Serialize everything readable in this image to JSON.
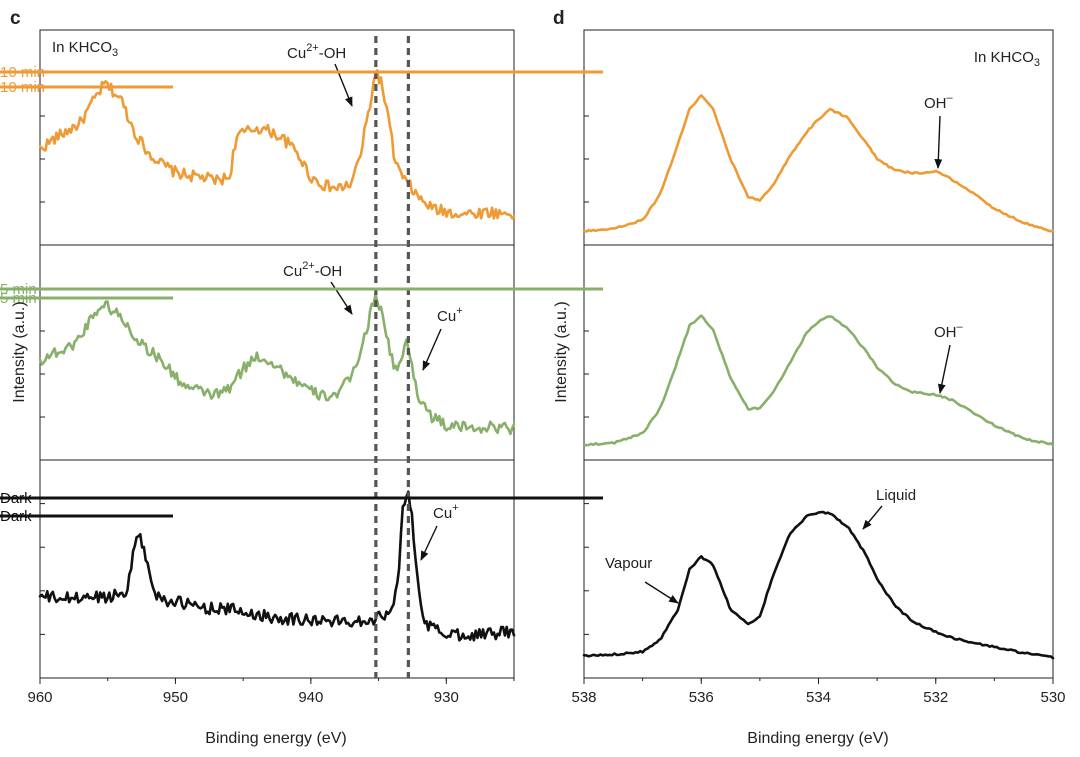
{
  "colors": {
    "orange": "#EE9A35",
    "green": "#88B06A",
    "black": "#111111"
  },
  "chart_data": [
    {
      "panel": "c",
      "type": "line",
      "context": "In KHCO3",
      "context_parts": {
        "main": "In KHCO",
        "sub": "3"
      },
      "xlabel": "Binding energy (eV)",
      "ylabel": "Intensity (a.u.)",
      "xlim": [
        960,
        925
      ],
      "x_ticks": [
        960,
        950,
        940,
        930
      ],
      "reference_lines_x": [
        935.2,
        932.8
      ],
      "series": [
        {
          "name": "10 min",
          "color": "orange",
          "x": [
            960,
            959,
            958,
            957,
            956,
            955.2,
            954,
            953,
            952,
            951,
            950,
            949,
            948,
            947,
            946,
            945.5,
            944,
            943,
            942,
            941,
            940,
            939,
            938,
            937,
            936.3,
            935.5,
            935.2,
            934.8,
            934.3,
            933.8,
            933.3,
            933,
            932.7,
            932,
            931,
            930,
            929,
            928,
            927,
            926,
            925
          ],
          "y": [
            0.52,
            0.58,
            0.63,
            0.68,
            0.82,
            0.92,
            0.82,
            0.62,
            0.5,
            0.43,
            0.38,
            0.36,
            0.35,
            0.33,
            0.35,
            0.6,
            0.65,
            0.63,
            0.58,
            0.5,
            0.35,
            0.3,
            0.28,
            0.31,
            0.5,
            0.85,
            1.0,
            0.92,
            0.72,
            0.45,
            0.36,
            0.32,
            0.3,
            0.22,
            0.16,
            0.14,
            0.13,
            0.13,
            0.14,
            0.13,
            0.13
          ]
        },
        {
          "name": "5 min",
          "color": "green",
          "x": [
            960,
            959,
            958,
            957,
            956,
            955.2,
            954,
            953,
            952,
            951,
            950,
            949,
            948,
            947,
            946,
            945,
            944,
            943,
            942,
            941,
            940,
            939,
            938,
            937,
            936,
            935.2,
            934.5,
            933.9,
            933.5,
            932.9,
            932.5,
            932,
            931,
            930,
            929,
            928,
            927,
            926,
            925
          ],
          "y": [
            0.55,
            0.6,
            0.62,
            0.7,
            0.85,
            0.9,
            0.82,
            0.7,
            0.62,
            0.55,
            0.45,
            0.38,
            0.36,
            0.34,
            0.38,
            0.5,
            0.58,
            0.55,
            0.48,
            0.42,
            0.36,
            0.33,
            0.35,
            0.45,
            0.7,
            0.98,
            0.75,
            0.52,
            0.5,
            0.68,
            0.5,
            0.32,
            0.2,
            0.15,
            0.14,
            0.14,
            0.14,
            0.14,
            0.13
          ]
        },
        {
          "name": "Dark",
          "color": "black",
          "x": [
            960,
            958,
            956,
            955,
            954,
            953.5,
            953,
            952.8,
            952.5,
            952,
            951.5,
            951,
            950,
            948,
            946,
            944,
            942,
            940,
            938,
            936,
            935,
            934.2,
            933.6,
            933.2,
            932.9,
            932.6,
            932.2,
            931.8,
            931.3,
            930.5,
            929,
            928,
            927,
            926,
            925
          ],
          "y": [
            0.4,
            0.39,
            0.4,
            0.4,
            0.42,
            0.45,
            0.7,
            0.78,
            0.72,
            0.55,
            0.42,
            0.39,
            0.37,
            0.34,
            0.33,
            0.3,
            0.28,
            0.27,
            0.26,
            0.27,
            0.28,
            0.33,
            0.45,
            0.9,
            1.0,
            0.9,
            0.55,
            0.3,
            0.24,
            0.2,
            0.19,
            0.19,
            0.19,
            0.2,
            0.2
          ]
        }
      ],
      "annotations": [
        {
          "series": "10 min",
          "text": "Cu2+-OH",
          "parts": {
            "base": "Cu",
            "sup": "2+",
            "tail": "-OH"
          },
          "x": 935.5
        },
        {
          "series": "5 min",
          "text": "Cu2+-OH",
          "parts": {
            "base": "Cu",
            "sup": "2+",
            "tail": "-OH"
          },
          "x": 935.4
        },
        {
          "series": "5 min",
          "text": "Cu+",
          "parts": {
            "base": "Cu",
            "sup": "+",
            "tail": ""
          },
          "x": 932.7
        },
        {
          "series": "Dark",
          "text": "Cu+",
          "parts": {
            "base": "Cu",
            "sup": "+",
            "tail": ""
          },
          "x": 932.5
        }
      ]
    },
    {
      "panel": "d",
      "type": "line",
      "context": "In KHCO3",
      "context_parts": {
        "main": "In KHCO",
        "sub": "3"
      },
      "xlabel": "Binding energy (eV)",
      "ylabel": "Intensity (a.u.)",
      "xlim": [
        538,
        530
      ],
      "x_ticks": [
        538,
        536,
        534,
        532,
        530
      ],
      "series": [
        {
          "name": "10 min",
          "color": "orange",
          "x": [
            538,
            537.5,
            537,
            536.7,
            536.4,
            536.2,
            536,
            535.8,
            535.5,
            535.2,
            535,
            534.8,
            534.5,
            534.2,
            534,
            533.8,
            533.5,
            533.2,
            533,
            532.7,
            532.4,
            532,
            531.7,
            531.4,
            531,
            530.5,
            530
          ],
          "y": [
            0.04,
            0.06,
            0.12,
            0.3,
            0.65,
            0.9,
            1.0,
            0.9,
            0.55,
            0.28,
            0.26,
            0.35,
            0.56,
            0.74,
            0.83,
            0.9,
            0.84,
            0.67,
            0.55,
            0.47,
            0.45,
            0.46,
            0.4,
            0.32,
            0.2,
            0.1,
            0.04
          ]
        },
        {
          "name": "5 min",
          "color": "green",
          "x": [
            538,
            537.5,
            537,
            536.7,
            536.4,
            536.2,
            536,
            535.8,
            535.5,
            535.2,
            535,
            534.8,
            534.5,
            534.2,
            534,
            533.8,
            533.5,
            533.2,
            533,
            532.7,
            532.4,
            532,
            531.7,
            531.4,
            531,
            530.5,
            530
          ],
          "y": [
            0.04,
            0.05,
            0.12,
            0.3,
            0.65,
            0.9,
            0.97,
            0.87,
            0.52,
            0.3,
            0.3,
            0.4,
            0.62,
            0.85,
            0.93,
            0.97,
            0.88,
            0.72,
            0.6,
            0.48,
            0.42,
            0.4,
            0.36,
            0.28,
            0.18,
            0.08,
            0.04
          ]
        },
        {
          "name": "Dark",
          "color": "black",
          "x": [
            538,
            537.5,
            537,
            536.7,
            536.4,
            536.2,
            536,
            535.8,
            535.5,
            535.2,
            535,
            534.8,
            534.5,
            534.2,
            534,
            533.8,
            533.5,
            533.2,
            533,
            532.7,
            532.4,
            532,
            531.7,
            531.4,
            531,
            530.5,
            530
          ],
          "y": [
            0.04,
            0.05,
            0.07,
            0.15,
            0.35,
            0.62,
            0.7,
            0.65,
            0.35,
            0.25,
            0.3,
            0.55,
            0.85,
            0.97,
            1.0,
            0.99,
            0.9,
            0.72,
            0.55,
            0.38,
            0.27,
            0.2,
            0.16,
            0.13,
            0.1,
            0.06,
            0.03
          ]
        }
      ],
      "annotations": [
        {
          "series": "10 min",
          "text": "OH–",
          "parts": {
            "base": "OH",
            "sup": "–",
            "tail": ""
          },
          "x": 532
        },
        {
          "series": "5 min",
          "text": "OH–",
          "parts": {
            "base": "OH",
            "sup": "–",
            "tail": ""
          },
          "x": 532
        },
        {
          "series": "Dark",
          "text": "Vapour",
          "parts": {
            "base": "Vapour",
            "sup": "",
            "tail": ""
          },
          "x": 536.4
        },
        {
          "series": "Dark",
          "text": "Liquid",
          "parts": {
            "base": "Liquid",
            "sup": "",
            "tail": ""
          },
          "x": 533.5
        }
      ]
    }
  ]
}
